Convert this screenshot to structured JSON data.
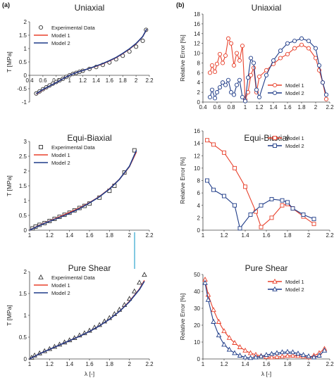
{
  "panel_labels": [
    "(a)",
    "(b)"
  ],
  "colors": {
    "model1": "#e8412c",
    "model2": "#1f3c88",
    "exp": "#333333",
    "axis": "#444444",
    "divider": "#59b7d8"
  },
  "xlabel": "λ [-]",
  "chart_data": [
    {
      "type": "line",
      "title": "Uniaxial",
      "ylabel": "T [MPa]",
      "xlim": [
        0.4,
        2.2
      ],
      "ylim": [
        -1,
        2
      ],
      "xticks": [
        "0.4",
        "0.6",
        "0.8",
        "1",
        "1.2",
        "1.4",
        "1.6",
        "1.8",
        "2",
        "2.2"
      ],
      "yticks": [
        "-1",
        "-0.5",
        "0",
        "0.5",
        "1",
        "1.5",
        "2"
      ],
      "legend": "top-left",
      "series": [
        {
          "name": "Experimental Data",
          "marker": "circle",
          "line": false,
          "x": [
            0.5,
            0.55,
            0.6,
            0.65,
            0.7,
            0.75,
            0.8,
            0.85,
            0.9,
            0.95,
            1.0,
            1.05,
            1.1,
            1.15,
            1.2,
            1.3,
            1.4,
            1.5,
            1.6,
            1.7,
            1.8,
            1.9,
            2.0,
            2.1,
            2.15
          ],
          "y": [
            -0.68,
            -0.6,
            -0.52,
            -0.45,
            -0.38,
            -0.31,
            -0.25,
            -0.19,
            -0.13,
            -0.06,
            0.0,
            0.05,
            0.09,
            0.13,
            0.17,
            0.24,
            0.31,
            0.39,
            0.48,
            0.6,
            0.73,
            0.89,
            1.07,
            1.29,
            1.7
          ]
        },
        {
          "name": "Model 1",
          "x": [
            0.5,
            0.6,
            0.7,
            0.8,
            0.9,
            1.0,
            1.1,
            1.2,
            1.3,
            1.4,
            1.5,
            1.6,
            1.7,
            1.8,
            1.9,
            2.0,
            2.1,
            2.16
          ],
          "y": [
            -0.7,
            -0.54,
            -0.4,
            -0.27,
            -0.13,
            0.0,
            0.1,
            0.18,
            0.26,
            0.34,
            0.43,
            0.54,
            0.66,
            0.81,
            0.98,
            1.18,
            1.45,
            1.72
          ]
        },
        {
          "name": "Model 2",
          "x": [
            0.5,
            0.6,
            0.7,
            0.8,
            0.9,
            1.0,
            1.1,
            1.2,
            1.3,
            1.4,
            1.5,
            1.6,
            1.7,
            1.8,
            1.9,
            2.0,
            2.1,
            2.16
          ],
          "y": [
            -0.69,
            -0.53,
            -0.4,
            -0.27,
            -0.13,
            0.0,
            0.1,
            0.18,
            0.26,
            0.35,
            0.44,
            0.55,
            0.67,
            0.82,
            0.99,
            1.19,
            1.45,
            1.73
          ]
        }
      ]
    },
    {
      "type": "line",
      "title": "Uniaxial",
      "ylabel": "Relative Error [%]",
      "xlim": [
        0.4,
        2.2
      ],
      "ylim": [
        0,
        18
      ],
      "xticks": [
        "0.4",
        "0.6",
        "0.8",
        "1",
        "1.2",
        "1.4",
        "1.6",
        "1.8",
        "2",
        "2.2"
      ],
      "yticks": [
        "0",
        "2",
        "4",
        "6",
        "8",
        "10",
        "12",
        "14",
        "16",
        "18"
      ],
      "legend": "bottom-right",
      "series": [
        {
          "name": "Model 1",
          "marker": "circle",
          "x": [
            0.5,
            0.53,
            0.57,
            0.6,
            0.64,
            0.68,
            0.72,
            0.76,
            0.8,
            0.84,
            0.88,
            0.92,
            0.96,
            1.0,
            1.04,
            1.08,
            1.12,
            1.16,
            1.2,
            1.3,
            1.4,
            1.5,
            1.6,
            1.7,
            1.8,
            1.9,
            2.0,
            2.05,
            2.1,
            2.15
          ],
          "y": [
            6,
            7.5,
            6.2,
            7.8,
            9.8,
            8,
            9.5,
            13,
            12,
            7.5,
            10,
            8.5,
            11.5,
            0.5,
            2,
            5.5,
            7,
            2,
            5.2,
            6.5,
            7.8,
            9,
            9.8,
            11,
            11.7,
            11,
            9,
            6.5,
            4,
            0.6
          ]
        },
        {
          "name": "Model 2",
          "marker": "circle",
          "x": [
            0.5,
            0.53,
            0.57,
            0.6,
            0.64,
            0.68,
            0.72,
            0.76,
            0.8,
            0.84,
            0.88,
            0.92,
            0.96,
            1.0,
            1.04,
            1.08,
            1.12,
            1.16,
            1.2,
            1.3,
            1.4,
            1.5,
            1.6,
            1.7,
            1.8,
            1.9,
            2.0,
            2.05,
            2.1,
            2.15
          ],
          "y": [
            1,
            2.5,
            0.8,
            2,
            3,
            4,
            3.5,
            4.5,
            2,
            1.5,
            3.5,
            4.5,
            1,
            0.2,
            5,
            9,
            8,
            2.5,
            1,
            5.5,
            8.5,
            10.5,
            12,
            12.5,
            13,
            12.5,
            11,
            7.5,
            4,
            1.5
          ]
        }
      ]
    },
    {
      "type": "line",
      "title": "Equi-Biaxial",
      "ylabel": "T [MPa]",
      "xlim": [
        1,
        2.2
      ],
      "ylim": [
        0,
        3
      ],
      "xticks": [
        "1",
        "1.2",
        "1.4",
        "1.6",
        "1.8",
        "2",
        "2.2"
      ],
      "yticks": [
        "0",
        "0.5",
        "1",
        "1.5",
        "2",
        "2.5",
        "3"
      ],
      "legend": "top-left",
      "series": [
        {
          "name": "Experimental Data",
          "marker": "square",
          "line": false,
          "x": [
            1.03,
            1.06,
            1.1,
            1.15,
            1.2,
            1.25,
            1.3,
            1.35,
            1.4,
            1.45,
            1.5,
            1.55,
            1.6,
            1.7,
            1.8,
            1.85,
            1.95,
            2.05
          ],
          "y": [
            0.06,
            0.12,
            0.18,
            0.24,
            0.31,
            0.38,
            0.45,
            0.52,
            0.59,
            0.67,
            0.75,
            0.82,
            0.9,
            1.1,
            1.33,
            1.5,
            1.95,
            2.7
          ]
        },
        {
          "name": "Model 1",
          "x": [
            1.0,
            1.1,
            1.2,
            1.3,
            1.4,
            1.5,
            1.6,
            1.7,
            1.8,
            1.9,
            2.0,
            2.07
          ],
          "y": [
            0.0,
            0.17,
            0.31,
            0.45,
            0.6,
            0.75,
            0.93,
            1.14,
            1.4,
            1.72,
            2.15,
            2.65
          ]
        },
        {
          "name": "Model 2",
          "x": [
            1.0,
            1.1,
            1.2,
            1.3,
            1.4,
            1.5,
            1.6,
            1.7,
            1.8,
            1.9,
            2.0,
            2.07
          ],
          "y": [
            0.0,
            0.16,
            0.3,
            0.43,
            0.57,
            0.73,
            0.92,
            1.13,
            1.39,
            1.72,
            2.16,
            2.7
          ]
        }
      ]
    },
    {
      "type": "line",
      "title": "Equi-Biaxial",
      "ylabel": "Relative Error [%]",
      "xlim": [
        1,
        2.2
      ],
      "ylim": [
        0,
        16
      ],
      "xticks": [
        "1",
        "1.2",
        "1.4",
        "1.6",
        "1.8",
        "2",
        "2.2"
      ],
      "yticks": [
        "0",
        "2",
        "4",
        "6",
        "8",
        "10",
        "12",
        "14",
        "16"
      ],
      "legend": "top-right",
      "series": [
        {
          "name": "Model 1",
          "marker": "square",
          "x": [
            1.04,
            1.1,
            1.2,
            1.3,
            1.4,
            1.5,
            1.55,
            1.65,
            1.75,
            1.8,
            1.85,
            1.95,
            2.05
          ],
          "y": [
            14.5,
            13.8,
            12.5,
            10,
            7,
            3,
            0.5,
            2,
            4,
            4.2,
            3.5,
            2.2,
            1
          ]
        },
        {
          "name": "Model 2",
          "marker": "square",
          "x": [
            1.04,
            1.1,
            1.2,
            1.3,
            1.35,
            1.45,
            1.55,
            1.65,
            1.75,
            1.8,
            1.85,
            1.95,
            2.05
          ],
          "y": [
            8,
            6.5,
            5.5,
            4,
            0.3,
            2.5,
            4,
            5,
            4.8,
            4.5,
            3.5,
            2.5,
            1.8
          ]
        }
      ]
    },
    {
      "type": "line",
      "title": "Pure Shear",
      "ylabel": "T [MPa]",
      "xlim": [
        1,
        2.2
      ],
      "ylim": [
        0,
        2
      ],
      "xticks": [
        "1",
        "1.2",
        "1.4",
        "1.6",
        "1.8",
        "2",
        "2.2"
      ],
      "yticks": [
        "0",
        "0.5",
        "1",
        "1.5",
        "2"
      ],
      "legend": "top-left",
      "series": [
        {
          "name": "Experimental Data",
          "marker": "triangle",
          "line": false,
          "x": [
            1.02,
            1.05,
            1.1,
            1.15,
            1.2,
            1.25,
            1.3,
            1.35,
            1.4,
            1.45,
            1.5,
            1.55,
            1.6,
            1.65,
            1.7,
            1.75,
            1.8,
            1.85,
            1.9,
            1.95,
            2.0,
            2.05,
            2.1,
            2.15
          ],
          "y": [
            0.03,
            0.08,
            0.13,
            0.18,
            0.23,
            0.28,
            0.33,
            0.38,
            0.43,
            0.48,
            0.54,
            0.59,
            0.65,
            0.72,
            0.78,
            0.86,
            0.94,
            1.03,
            1.13,
            1.24,
            1.38,
            1.55,
            1.75,
            1.93
          ]
        },
        {
          "name": "Model 1",
          "x": [
            1.0,
            1.1,
            1.2,
            1.3,
            1.4,
            1.5,
            1.6,
            1.7,
            1.8,
            1.9,
            2.0,
            2.1,
            2.15
          ],
          "y": [
            0.0,
            0.12,
            0.22,
            0.32,
            0.42,
            0.52,
            0.63,
            0.76,
            0.91,
            1.09,
            1.32,
            1.6,
            1.8
          ]
        },
        {
          "name": "Model 2",
          "x": [
            1.0,
            1.1,
            1.2,
            1.3,
            1.4,
            1.5,
            1.6,
            1.7,
            1.8,
            1.9,
            2.0,
            2.1,
            2.15
          ],
          "y": [
            0.0,
            0.12,
            0.22,
            0.32,
            0.42,
            0.52,
            0.63,
            0.76,
            0.91,
            1.09,
            1.31,
            1.59,
            1.78
          ]
        }
      ]
    },
    {
      "type": "line",
      "title": "Pure Shear",
      "ylabel": "Relative Error [%]",
      "xlim": [
        1,
        2.2
      ],
      "ylim": [
        0,
        50
      ],
      "xticks": [
        "1",
        "1.2",
        "1.4",
        "1.6",
        "1.8",
        "2",
        "2.2"
      ],
      "yticks": [
        "0",
        "10",
        "20",
        "30",
        "40",
        "50"
      ],
      "legend": "top-right",
      "series": [
        {
          "name": "Model 1",
          "marker": "triangle",
          "x": [
            1.02,
            1.05,
            1.1,
            1.15,
            1.2,
            1.25,
            1.3,
            1.35,
            1.4,
            1.45,
            1.5,
            1.55,
            1.6,
            1.65,
            1.7,
            1.75,
            1.8,
            1.85,
            1.9,
            1.95,
            2.0,
            2.05,
            2.1,
            2.15
          ],
          "y": [
            47,
            38,
            29,
            22,
            16.5,
            12.5,
            9.5,
            7,
            5,
            3.5,
            2.5,
            1.8,
            1.2,
            1.0,
            1.2,
            1.5,
            1.8,
            2.0,
            1.8,
            1.5,
            1.0,
            2.0,
            3.5,
            6
          ]
        },
        {
          "name": "Model 2",
          "marker": "triangle",
          "x": [
            1.02,
            1.05,
            1.1,
            1.15,
            1.2,
            1.25,
            1.3,
            1.35,
            1.4,
            1.45,
            1.5,
            1.55,
            1.6,
            1.65,
            1.7,
            1.75,
            1.8,
            1.85,
            1.9,
            1.95,
            2.0,
            2.05,
            2.1,
            2.15
          ],
          "y": [
            45,
            35,
            22,
            14,
            8.5,
            5.5,
            3.5,
            2.0,
            1.0,
            0.6,
            1.0,
            1.6,
            2.4,
            3.0,
            3.5,
            4.0,
            4.2,
            4.0,
            3.2,
            2.4,
            1.6,
            1.0,
            2.0,
            5
          ]
        }
      ]
    }
  ]
}
